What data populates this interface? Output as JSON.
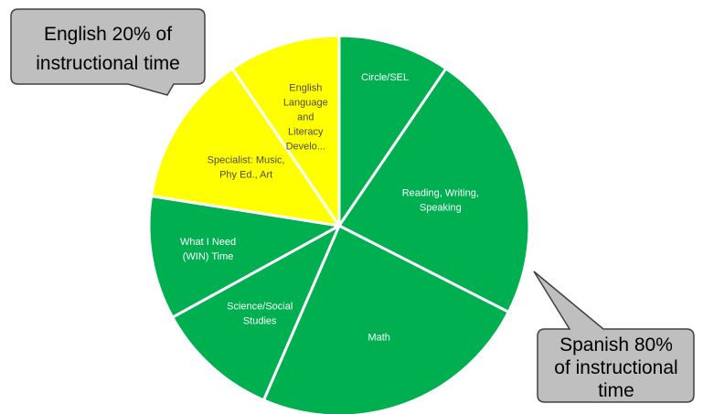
{
  "chart_data": {
    "type": "pie",
    "start_angle_deg": 0,
    "direction": "clockwise",
    "slices": [
      {
        "label": "Circle/SEL",
        "value": 9.5,
        "color": "#00b050",
        "text_color": "#ffffff",
        "lines": [
          "Circle/SEL"
        ]
      },
      {
        "label": "Reading, Writing, Speaking",
        "value": 23.0,
        "color": "#00b050",
        "text_color": "#ffffff",
        "lines": [
          "Reading, Writing,",
          "Speaking"
        ]
      },
      {
        "label": "Math",
        "value": 24.0,
        "color": "#00b050",
        "text_color": "#ffffff",
        "lines": [
          "Math"
        ]
      },
      {
        "label": "Science/Social Studies",
        "value": 10.5,
        "color": "#00b050",
        "text_color": "#ffffff",
        "lines": [
          "Science/Social",
          "Studies"
        ]
      },
      {
        "label": "What I Need (WIN) Time",
        "value": 10.5,
        "color": "#00b050",
        "text_color": "#ffffff",
        "lines": [
          "What I Need",
          "(WIN) Time"
        ]
      },
      {
        "label": "Specialist: Music, Phy Ed., Art",
        "value": 13.0,
        "color": "#ffff00",
        "text_color": "#4a4a4a",
        "lines": [
          "Specialist: Music,",
          "Phy Ed., Art"
        ]
      },
      {
        "label": "English Language and Literacy Develo...",
        "value": 9.5,
        "color": "#ffff00",
        "text_color": "#4a4a4a",
        "lines": [
          "English",
          "Language",
          "and",
          "Literacy",
          "Develo..."
        ]
      }
    ]
  },
  "callouts": [
    {
      "lines": [
        "English 20% of",
        "instructional time"
      ],
      "fill": "#bfbfbf",
      "stroke": "#404040"
    },
    {
      "lines": [
        "Spanish 80%",
        "of instructional",
        "time"
      ],
      "fill": "#bfbfbf",
      "stroke": "#404040"
    }
  ]
}
